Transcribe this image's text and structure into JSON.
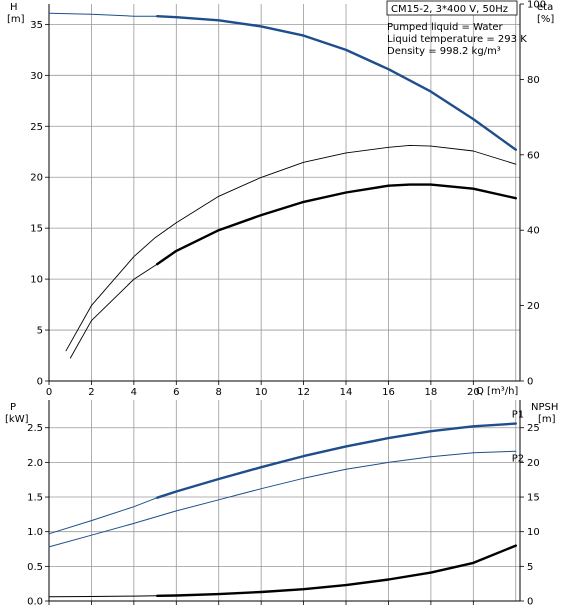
{
  "chart_data": [
    {
      "type": "line",
      "panel": "head-efficiency",
      "title": "CM15-2, 3*400 V, 50Hz",
      "info_lines": [
        "Pumped liquid = Water",
        "Liquid temperature = 293 K",
        "Density = 998.2 kg/m³"
      ],
      "xlabel": "Q [m³/h]",
      "x_ticks": [
        "0",
        "2",
        "4",
        "6",
        "8",
        "10",
        "12",
        "14",
        "16",
        "18",
        "20"
      ],
      "xlim": [
        0,
        22.2
      ],
      "left_axis": {
        "label_top": "H",
        "label_unit": "[m]",
        "ylim": [
          0,
          37
        ],
        "ticks": [
          "0",
          "5",
          "10",
          "15",
          "20",
          "25",
          "30",
          "35"
        ]
      },
      "right_axis": {
        "label_top": "eta",
        "label_unit": "[%]",
        "ylim": [
          0,
          100
        ],
        "ticks": [
          "0",
          "20",
          "40",
          "60",
          "80",
          "100"
        ]
      },
      "series": [
        {
          "axis": "left",
          "color": "#1f4e8c",
          "width_thin": 1,
          "width_thick": 2.4,
          "thick_from": 5.1,
          "x": [
            0,
            2,
            4,
            5.1,
            6,
            8,
            10,
            12,
            14,
            16,
            18,
            20,
            22
          ],
          "y": [
            36.1,
            36.0,
            35.8,
            35.8,
            35.7,
            35.4,
            34.8,
            33.9,
            32.5,
            30.6,
            28.4,
            25.7,
            22.7
          ]
        },
        {
          "axis": "right",
          "color": "#000000",
          "width_thin": 0.9,
          "width_thick": 0.9,
          "thick_from": 0,
          "x": [
            0.8,
            2,
            4,
            5,
            6,
            8,
            10,
            12,
            14,
            16,
            17,
            18,
            20,
            22
          ],
          "y": [
            8,
            20,
            33,
            38,
            42,
            49,
            54,
            58,
            60.5,
            62.0,
            62.5,
            62.3,
            61,
            57.5
          ]
        },
        {
          "axis": "right",
          "color": "#000000",
          "width_thin": 0.9,
          "width_thick": 2.4,
          "thick_from": 5.1,
          "x": [
            1.0,
            2,
            4,
            5.1,
            6,
            8,
            10,
            12,
            14,
            16,
            17,
            18,
            20,
            22
          ],
          "y": [
            6,
            16,
            27,
            31,
            34.5,
            40,
            44,
            47.5,
            50,
            51.8,
            52.1,
            52.1,
            51,
            48.5
          ]
        }
      ]
    },
    {
      "type": "line",
      "panel": "power-npsh",
      "xlim": [
        0,
        22.2
      ],
      "left_axis": {
        "label_top": "P",
        "label_unit": "[kW]",
        "ylim": [
          0,
          2.9
        ],
        "ticks": [
          "0.0",
          "0.5",
          "1.0",
          "1.5",
          "2.0",
          "2.5"
        ]
      },
      "right_axis": {
        "label_top": "NPSH",
        "label_unit": "[m]",
        "ylim": [
          0,
          29
        ],
        "ticks": [
          "0",
          "5",
          "10",
          "15",
          "20",
          "25"
        ]
      },
      "series": [
        {
          "name": "P1",
          "axis": "left",
          "color": "#1f4e8c",
          "width_thin": 1,
          "width_thick": 2.4,
          "thick_from": 5.1,
          "x": [
            0,
            2,
            4,
            5.1,
            6,
            8,
            10,
            12,
            14,
            16,
            18,
            20,
            22
          ],
          "y": [
            0.97,
            1.16,
            1.36,
            1.49,
            1.58,
            1.76,
            1.93,
            2.09,
            2.23,
            2.35,
            2.45,
            2.52,
            2.56
          ]
        },
        {
          "name": "P2",
          "axis": "left",
          "color": "#1f4e8c",
          "width_thin": 1,
          "width_thick": 1,
          "thick_from": 0,
          "x": [
            0,
            2,
            4,
            6,
            8,
            10,
            12,
            14,
            16,
            18,
            20,
            22
          ],
          "y": [
            0.78,
            0.95,
            1.12,
            1.3,
            1.46,
            1.62,
            1.77,
            1.9,
            2.0,
            2.08,
            2.14,
            2.16
          ]
        },
        {
          "axis": "right",
          "color": "#000000",
          "width_thin": 1,
          "width_thick": 2.4,
          "thick_from": 5.1,
          "x": [
            0,
            2,
            4,
            5.1,
            6,
            8,
            10,
            12,
            14,
            16,
            18,
            20,
            22
          ],
          "y": [
            0.6,
            0.65,
            0.7,
            0.75,
            0.8,
            1.0,
            1.3,
            1.7,
            2.3,
            3.1,
            4.1,
            5.5,
            8.0
          ]
        }
      ]
    }
  ]
}
